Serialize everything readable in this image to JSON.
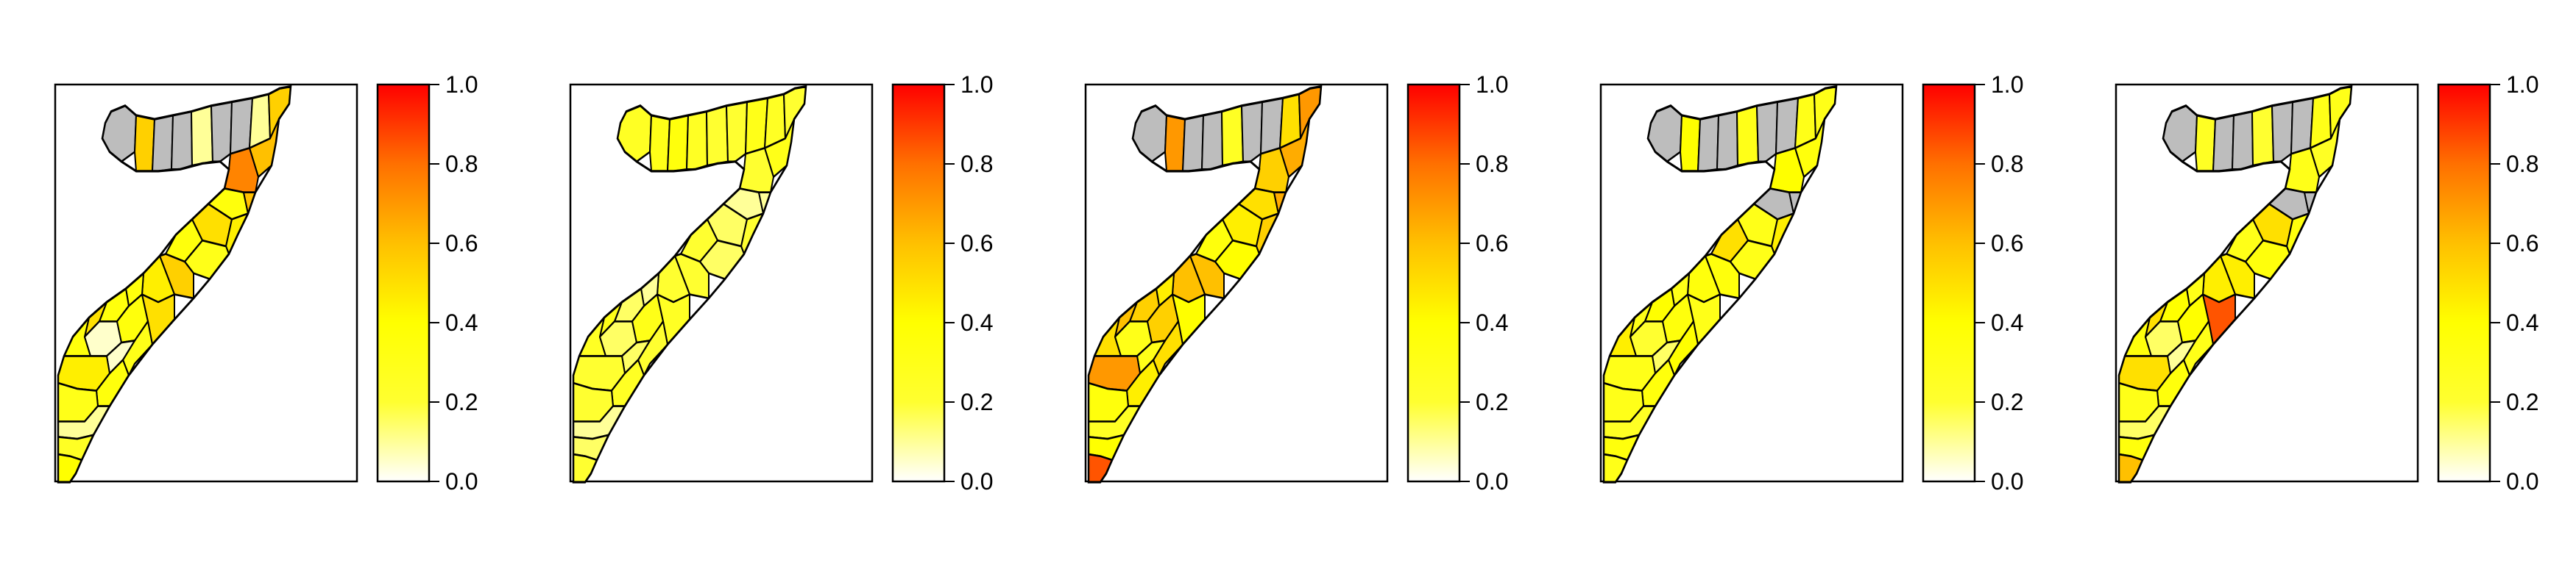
{
  "figure": {
    "panel_count": 5,
    "colorbar": {
      "ticks": [
        "0.0",
        "0.2",
        "0.4",
        "0.6",
        "0.8",
        "1.0"
      ],
      "min": 0.0,
      "max": 1.0,
      "color_stops": [
        "#ffffff",
        "#ffff30",
        "#ffff00",
        "#ffc000",
        "#ff7000",
        "#ff0000"
      ]
    },
    "no_data_color": "#bdbdbd",
    "panels": [
      {
        "north": [
          0.6,
          0.55,
          0.6,
          0.5,
          0.1,
          0.4,
          0.6,
          0.1
        ],
        "northeast": [
          0.55,
          0.6,
          0.75
        ],
        "east": [
          0.35,
          0.6,
          0.5,
          0.45,
          0.35,
          0.3,
          0.55
        ],
        "south": [
          0.45,
          0.35,
          0.35,
          0.5,
          0.35,
          0.05,
          0.35,
          0.5,
          0.3,
          0.05,
          0.45,
          0.35,
          0.3,
          0.1,
          0.25,
          0.4
        ],
        "tip": 0.3,
        "grey_north": true,
        "grey_east": false
      },
      {
        "north": [
          0.25,
          0.3,
          0.35,
          0.25,
          0.2,
          0.2,
          0.3,
          0.25
        ],
        "northeast": [
          0.2,
          0.3,
          0.2
        ],
        "east": [
          0.1,
          0.1,
          0.15,
          0.2,
          0.2,
          0.15,
          0.2
        ],
        "south": [
          0.2,
          0.1,
          0.15,
          0.3,
          0.25,
          0.15,
          0.3,
          0.25,
          0.2,
          0.15,
          0.2,
          0.25,
          0.2,
          0.1,
          0.15,
          0.2
        ],
        "tip": 0.2,
        "grey_north": false,
        "grey_east": false
      },
      {
        "north": [
          0.55,
          0.7,
          0.65,
          0.55,
          0.25,
          0.3,
          0.7,
          0.5
        ],
        "northeast": [
          0.7,
          0.65,
          0.55
        ],
        "east": [
          0.5,
          0.65,
          0.45,
          0.55,
          0.35,
          0.4,
          0.6
        ],
        "south": [
          0.6,
          0.45,
          0.55,
          0.6,
          0.5,
          0.3,
          0.55,
          0.4,
          0.5,
          0.3,
          0.7,
          0.45,
          0.35,
          0.25,
          0.4,
          0.85
        ],
        "tip": 0.9,
        "grey_north": true,
        "grey_east": false
      },
      {
        "north": [
          0.5,
          0.4,
          0.45,
          0.35,
          0.3,
          0.35,
          0.4,
          0.3
        ],
        "northeast": [
          0.3,
          0.35,
          0.4
        ],
        "east": [
          0.3,
          0.35,
          0.3,
          0.45,
          0.5,
          0.3,
          0.35
        ],
        "south": [
          0.35,
          0.3,
          0.4,
          0.3,
          0.45,
          0.2,
          0.35,
          0.3,
          0.4,
          0.15,
          0.3,
          0.35,
          0.3,
          0.25,
          0.35,
          0.3
        ],
        "tip": 0.35,
        "grey_north": true,
        "grey_east": true
      },
      {
        "north": [
          0.3,
          0.25,
          0.3,
          0.25,
          0.2,
          0.25,
          0.3,
          0.3
        ],
        "northeast": [
          0.3,
          0.25,
          0.3
        ],
        "east": [
          0.4,
          0.9,
          0.5,
          0.35,
          0.3,
          0.35,
          0.45
        ],
        "south": [
          0.45,
          0.3,
          0.4,
          0.5,
          0.35,
          0.15,
          0.4,
          0.85,
          0.3,
          0.1,
          0.5,
          0.35,
          0.3,
          0.15,
          0.35,
          0.6
        ],
        "tip": 0.7,
        "grey_north": true,
        "grey_east": true
      }
    ]
  }
}
